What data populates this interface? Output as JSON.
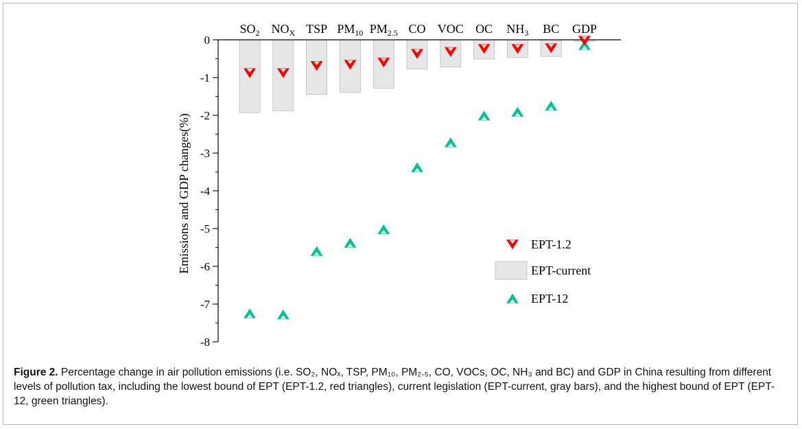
{
  "chart_data": {
    "type": "bar",
    "categories": [
      {
        "base": "SO",
        "sub": "2"
      },
      {
        "base": "NO",
        "sub": "X"
      },
      {
        "base": "TSP",
        "sub": ""
      },
      {
        "base": "PM",
        "sub": "10"
      },
      {
        "base": "PM",
        "sub": "2.5"
      },
      {
        "base": "CO",
        "sub": ""
      },
      {
        "base": "VOC",
        "sub": ""
      },
      {
        "base": "OC",
        "sub": ""
      },
      {
        "base": "NH",
        "sub": "3"
      },
      {
        "base": "BC",
        "sub": ""
      },
      {
        "base": "GDP",
        "sub": ""
      }
    ],
    "ylabel": "Emissions and GDP changes(%)",
    "ylim": [
      -8,
      0
    ],
    "yticks": [
      "0",
      "-1",
      "-2",
      "-3",
      "-4",
      "-5",
      "-6",
      "-7",
      "-8"
    ],
    "series": [
      {
        "name": "EPT-1.2",
        "kind": "marker-down",
        "color": "#ff0000",
        "values": [
          -0.88,
          -0.88,
          -0.69,
          -0.66,
          -0.6,
          -0.37,
          -0.32,
          -0.24,
          -0.24,
          -0.22,
          -0.02
        ]
      },
      {
        "name": "EPT-current",
        "kind": "bar",
        "color": "#e6e6e6",
        "values": [
          -1.93,
          -1.88,
          -1.45,
          -1.39,
          -1.28,
          -0.77,
          -0.72,
          -0.51,
          -0.47,
          -0.44,
          -0.04
        ]
      },
      {
        "name": "EPT-12",
        "kind": "marker-up",
        "color": "#00c490",
        "values": [
          -7.25,
          -7.28,
          -5.6,
          -5.38,
          -5.02,
          -3.38,
          -2.72,
          -2.01,
          -1.91,
          -1.75,
          -0.14
        ]
      }
    ],
    "legend_position": "bottom-right",
    "grid": false
  },
  "caption": {
    "label": "Figure 2.",
    "text": "Percentage change in air pollution emissions (i.e. SO₂, NOₓ, TSP, PM₁₀, PM₂.₅, CO, VOCs, OC, NH₃ and BC) and GDP in China resulting from different levels of pollution tax, including the lowest bound of EPT (EPT-1.2, red triangles), current legislation (EPT-current, gray bars), and the highest bound of EPT (EPT-12, green triangles)."
  }
}
